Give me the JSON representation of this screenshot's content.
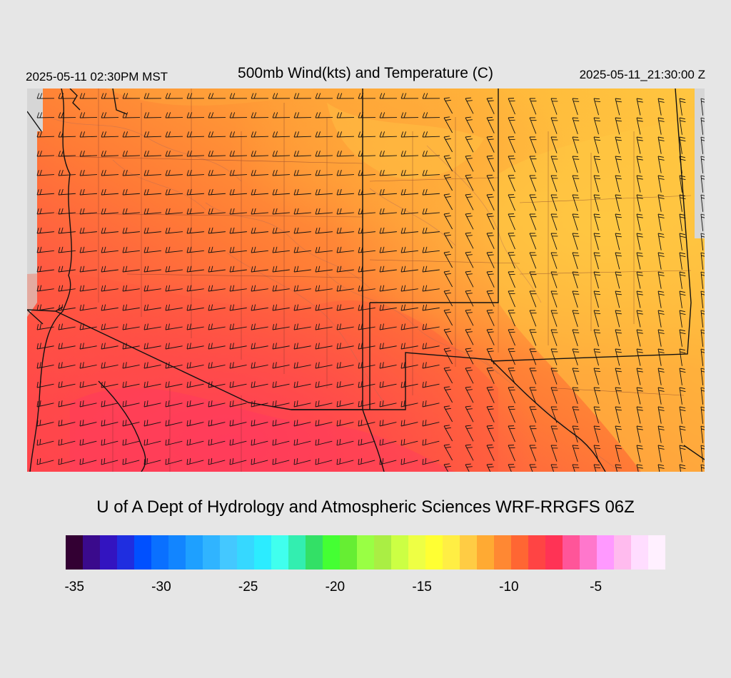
{
  "header": {
    "local_time": "2025-05-11 02:30PM MST",
    "title": "500mb Wind(kts) and Temperature (C)",
    "valid_time": "2025-05-11_21:30:00 Z"
  },
  "credit": "U of A Dept of Hydrology and Atmospheric Sciences WRF-RRGFS 06Z",
  "colorbar": {
    "colors": [
      "#330033",
      "#3a0a8c",
      "#3314c0",
      "#1f2ee0",
      "#0050ff",
      "#0a70ff",
      "#1285ff",
      "#1ea0ff",
      "#30b4ff",
      "#44c8ff",
      "#36d8ff",
      "#2cecff",
      "#40ffee",
      "#33eeb0",
      "#33e066",
      "#44ff33",
      "#66ee33",
      "#99ff44",
      "#aaee44",
      "#ccff44",
      "#eeff44",
      "#ffff33",
      "#ffee44",
      "#ffcc44",
      "#ffaa33",
      "#ff8833",
      "#ff6633",
      "#ff4444",
      "#ff3355",
      "#ff5599",
      "#ff77cc",
      "#ff99ff",
      "#ffbbee",
      "#ffddff",
      "#fff0ff"
    ],
    "tick_labels": [
      "-35",
      "-30",
      "-25",
      "-20",
      "-15",
      "-10",
      "-5"
    ],
    "tick_values": [
      -35,
      -30,
      -25,
      -20,
      -15,
      -10,
      -5
    ],
    "min": -35.5,
    "max": -1
  }
}
